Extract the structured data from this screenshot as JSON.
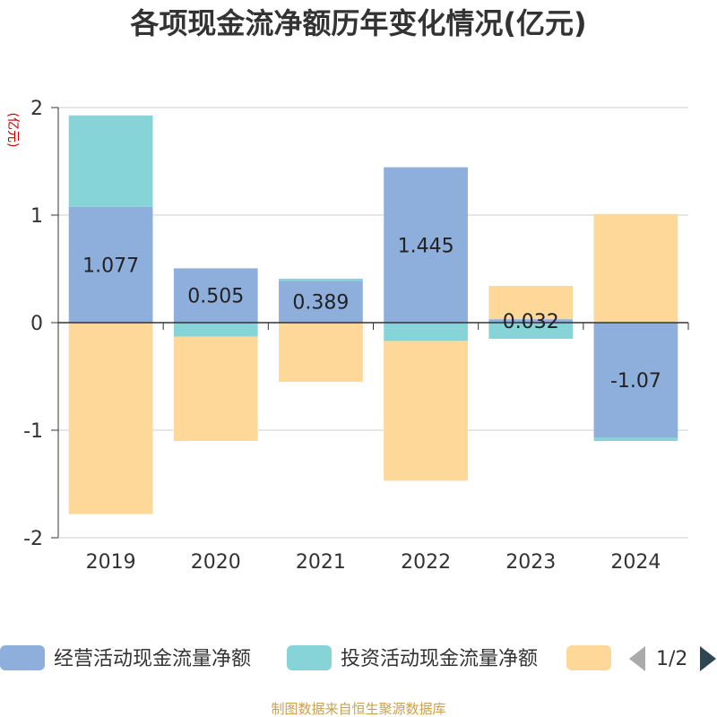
{
  "chart_data": {
    "type": "bar",
    "stacked": true,
    "title": "各项现金流净额历年变化情况(亿元)",
    "ylabel": "(亿元)",
    "categories": [
      "2019",
      "2020",
      "2021",
      "2022",
      "2023",
      "2024"
    ],
    "ylim": [
      -2,
      2
    ],
    "yticks": [
      "2",
      "1",
      "0",
      "-1",
      "-2"
    ],
    "grid": true,
    "series": [
      {
        "name": "经营活动现金流量净额",
        "color": "#8eaedc",
        "values": [
          1.077,
          0.505,
          0.389,
          1.445,
          0.032,
          -1.07
        ],
        "labels": [
          "1.077",
          "0.505",
          "0.389",
          "1.445",
          "0.032",
          "-1.07"
        ]
      },
      {
        "name": "投资活动现金流量净额",
        "color": "#87d4d8",
        "values": [
          0.85,
          -0.13,
          0.02,
          -0.17,
          -0.15,
          -0.03
        ]
      },
      {
        "name": "",
        "color": "#fed898",
        "values": [
          -1.78,
          -0.97,
          -0.55,
          -1.3,
          0.31,
          1.01
        ]
      }
    ],
    "legend_position": "bottom",
    "legend_page": "1/2"
  },
  "source": "制图数据来自恒生聚源数据库"
}
